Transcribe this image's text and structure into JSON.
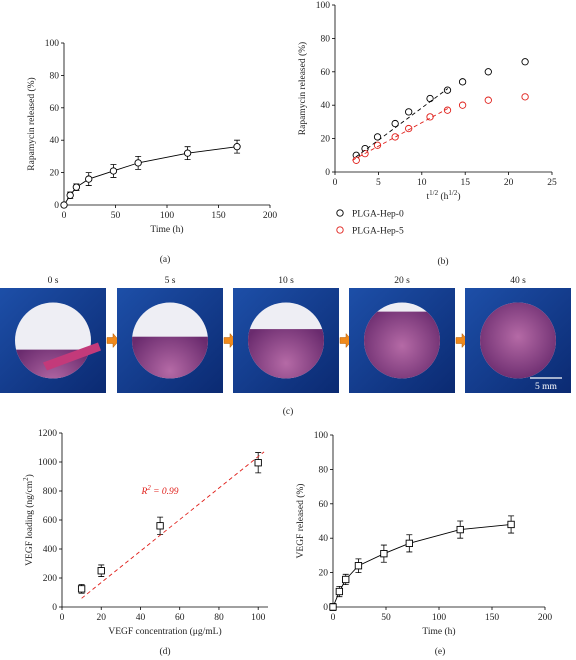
{
  "chart_data": [
    {
      "type": "line",
      "label": "(a)",
      "xlabel": "Time (h)",
      "ylabel": "Rapamycin released (%)",
      "xlim": [
        0,
        200
      ],
      "ylim": [
        0,
        100
      ],
      "xticks": [
        0,
        50,
        100,
        150,
        200
      ],
      "yticks": [
        0,
        20,
        40,
        60,
        80,
        100
      ],
      "series": [
        {
          "color": "#000000",
          "marker": "circle",
          "line": "solid",
          "x": [
            0,
            6,
            12,
            24,
            48,
            72,
            120,
            168
          ],
          "values": [
            0,
            6,
            11,
            16,
            21,
            26,
            32,
            36
          ],
          "errors": [
            1,
            2,
            2,
            4,
            4,
            4,
            4,
            4
          ]
        }
      ]
    },
    {
      "type": "scatter",
      "label": "(b)",
      "xlabel": [
        {
          "text": "t",
          "sup": false
        },
        {
          "text": "1/2",
          "sup": true
        },
        {
          "text": " (h",
          "sup": false
        },
        {
          "text": "1/2",
          "sup": true
        },
        {
          "text": ")",
          "sup": false
        }
      ],
      "ylabel": "Rapamycin released (%)",
      "xlim": [
        0,
        25
      ],
      "ylim": [
        0,
        100
      ],
      "xticks": [
        0,
        5,
        10,
        15,
        20,
        25
      ],
      "yticks": [
        0,
        20,
        40,
        60,
        80,
        100
      ],
      "series": [
        {
          "name": "PLGA-Hep-0",
          "color": "#000000",
          "marker": "circle",
          "line": "none",
          "x": [
            2.45,
            3.46,
            4.9,
            6.93,
            8.49,
            10.95,
            12.96,
            14.7,
            17.66,
            21.9
          ],
          "values": [
            10,
            14,
            21,
            29,
            36,
            44,
            49,
            54,
            60,
            66
          ]
        },
        {
          "name": "PLGA-Hep-5",
          "color": "#e0201b",
          "marker": "circle",
          "line": "none",
          "x": [
            2.45,
            3.46,
            4.9,
            6.93,
            8.49,
            10.95,
            12.96,
            14.7,
            17.66,
            21.9
          ],
          "values": [
            7,
            11,
            16,
            21,
            26,
            33,
            37,
            40,
            43,
            45
          ]
        },
        {
          "color": "#000000",
          "marker": "none",
          "line": "dashed",
          "x": [
            2.4,
            13
          ],
          "values": [
            9,
            50
          ]
        },
        {
          "color": "#e0201b",
          "marker": "none",
          "line": "dashed",
          "x": [
            2,
            13
          ],
          "values": [
            7,
            38
          ]
        }
      ]
    },
    {
      "type": "scatter",
      "label": "(d)",
      "xlabel": "VEGF concentration (μg/mL)",
      "ylabel": [
        {
          "text": "VEGF loading (ng/cm",
          "sup": false
        },
        {
          "text": "2",
          "sup": true
        },
        {
          "text": ")",
          "sup": false
        }
      ],
      "annotation": [
        {
          "text": "R",
          "sup": false
        },
        {
          "text": "2",
          "sup": true
        },
        {
          "text": " = 0.99",
          "sup": false
        }
      ],
      "annotation_color": "#e0201b",
      "xlim": [
        0,
        105
      ],
      "ylim": [
        0,
        1200
      ],
      "xticks": [
        0,
        20,
        40,
        60,
        80,
        100
      ],
      "yticks": [
        0,
        200,
        400,
        600,
        800,
        1000,
        1200
      ],
      "series": [
        {
          "color": "#000000",
          "marker": "square",
          "line": "none",
          "x": [
            10,
            20,
            50,
            100
          ],
          "values": [
            125,
            250,
            560,
            995
          ],
          "errors": [
            30,
            40,
            60,
            70
          ]
        },
        {
          "color": "#e0201b",
          "marker": "none",
          "line": "dashed",
          "x": [
            10,
            103
          ],
          "values": [
            60,
            1070
          ]
        }
      ]
    },
    {
      "type": "line",
      "label": "(e)",
      "xlabel": "Time (h)",
      "ylabel": "VEGF released (%)",
      "xlim": [
        0,
        200
      ],
      "ylim": [
        0,
        100
      ],
      "xticks": [
        0,
        50,
        100,
        150,
        200
      ],
      "yticks": [
        0,
        20,
        40,
        60,
        80,
        100
      ],
      "series": [
        {
          "color": "#000000",
          "marker": "square",
          "line": "solid",
          "x": [
            0,
            6,
            12,
            24,
            48,
            72,
            120,
            168
          ],
          "values": [
            0,
            9,
            16,
            24,
            31,
            37,
            45,
            48
          ],
          "errors": [
            2,
            3,
            3,
            4,
            5,
            5,
            5,
            5
          ]
        }
      ]
    }
  ],
  "photo_panel": {
    "label": "(c)",
    "times": [
      "0 s",
      "5 s",
      "10 s",
      "20 s",
      "40 s"
    ],
    "scale_bar": "5 mm"
  }
}
